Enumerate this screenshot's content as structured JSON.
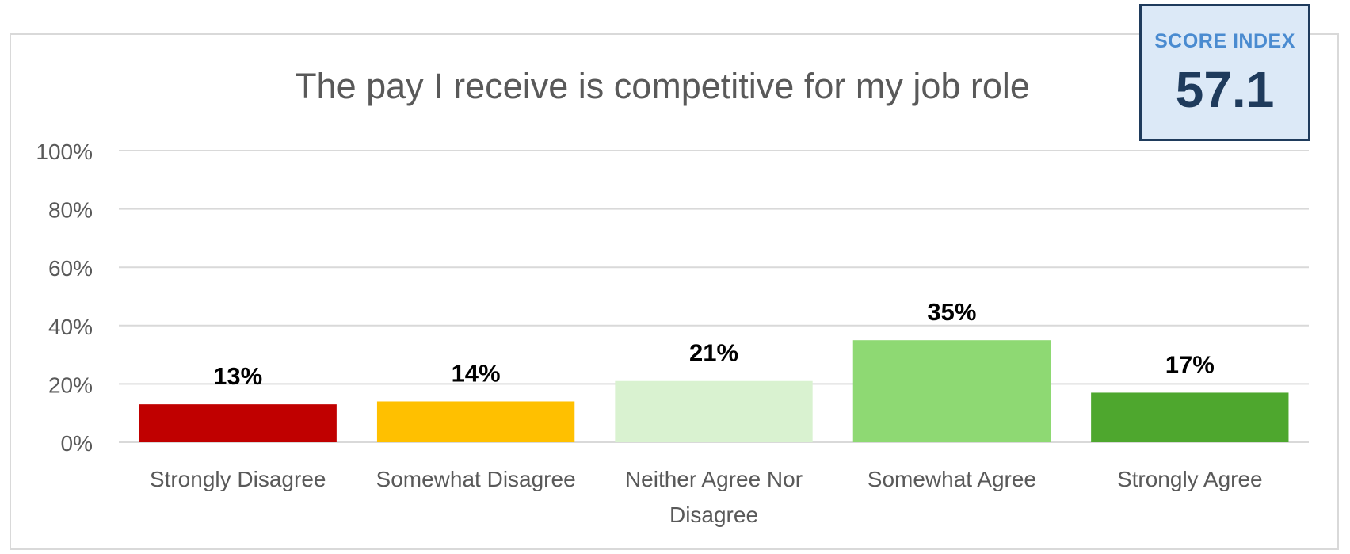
{
  "chart_data": {
    "type": "bar",
    "title": "The pay I receive is competitive for my job role",
    "categories": [
      "Strongly Disagree",
      "Somewhat Disagree",
      "Neither Agree Nor Disagree",
      "Somewhat Agree",
      "Strongly Agree"
    ],
    "category_lines": [
      [
        "Strongly Disagree"
      ],
      [
        "Somewhat Disagree"
      ],
      [
        "Neither Agree Nor",
        "Disagree"
      ],
      [
        "Somewhat Agree"
      ],
      [
        "Strongly Agree"
      ]
    ],
    "values": [
      13,
      14,
      21,
      35,
      17
    ],
    "data_labels": [
      "13%",
      "14%",
      "21%",
      "35%",
      "17%"
    ],
    "colors": [
      "#c00000",
      "#ffc000",
      "#d9f2d0",
      "#8ed973",
      "#4ea72e"
    ],
    "ylim": [
      0,
      100
    ],
    "yticks": [
      0,
      20,
      40,
      60,
      80,
      100
    ],
    "ytick_labels": [
      "0%",
      "20%",
      "40%",
      "60%",
      "80%",
      "100%"
    ],
    "xlabel": "",
    "ylabel": "",
    "grid": true,
    "legend": "none"
  },
  "score_index": {
    "label": "SCORE INDEX",
    "value": "57.1"
  }
}
